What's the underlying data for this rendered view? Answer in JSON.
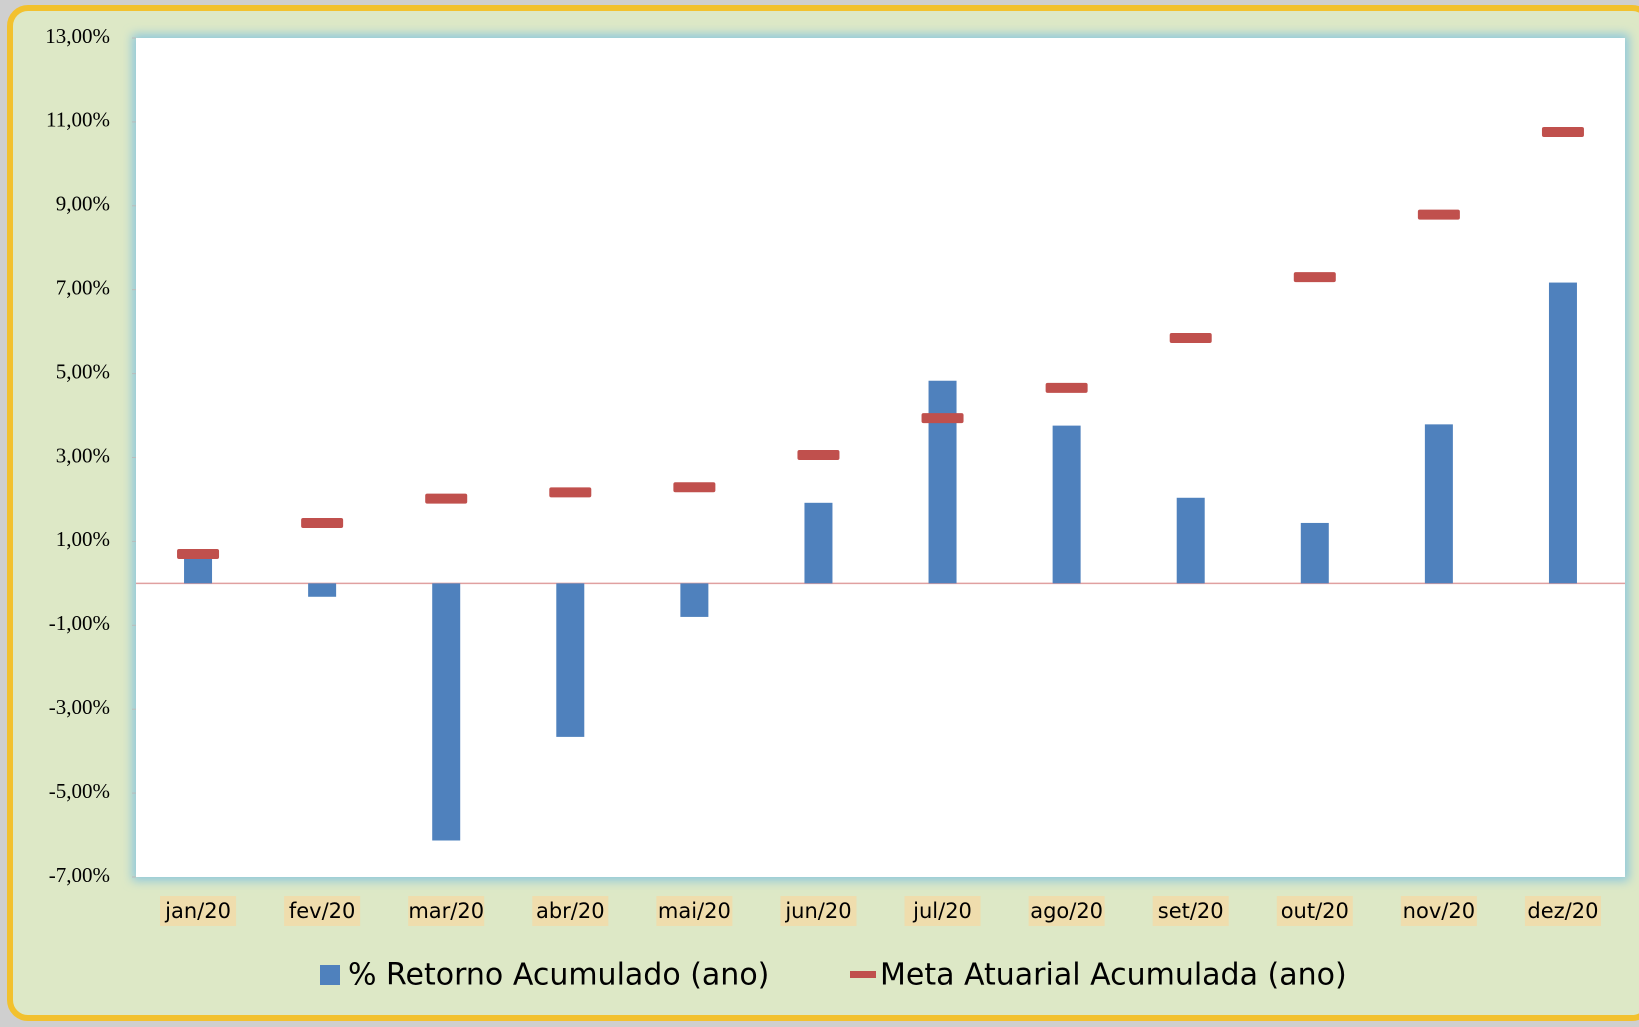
{
  "chart_data": {
    "type": "bar",
    "categories": [
      "jan/20",
      "fev/20",
      "mar/20",
      "abr/20",
      "mai/20",
      "jun/20",
      "jul/20",
      "ago/20",
      "set/20",
      "out/20",
      "nov/20",
      "dez/20"
    ],
    "series": [
      {
        "name": "% Retorno Acumulado (ano)",
        "type": "bar",
        "color": "#4f81bd",
        "values": [
          0.6,
          -0.32,
          -6.13,
          -3.66,
          -0.8,
          1.92,
          4.83,
          3.76,
          2.04,
          1.44,
          3.79,
          7.17
        ]
      },
      {
        "name": "Meta Atuarial Acumulada (ano)",
        "type": "marker",
        "color": "#c0504d",
        "values": [
          0.7,
          1.44,
          2.02,
          2.17,
          2.29,
          3.06,
          3.94,
          4.66,
          5.85,
          7.3,
          8.79,
          10.76
        ]
      }
    ],
    "ylim": [
      -7,
      13
    ],
    "yticks": [
      {
        "value": -7,
        "label": "-7,00%"
      },
      {
        "value": -5,
        "label": "-5,00%"
      },
      {
        "value": -3,
        "label": "-3,00%"
      },
      {
        "value": -1,
        "label": "-1,00%"
      },
      {
        "value": 1,
        "label": "1,00%"
      },
      {
        "value": 3,
        "label": "3,00%"
      },
      {
        "value": 5,
        "label": "5,00%"
      },
      {
        "value": 7,
        "label": "7,00%"
      },
      {
        "value": 9,
        "label": "9,00%"
      },
      {
        "value": 11,
        "label": "11,00%"
      },
      {
        "value": 13,
        "label": "13,00%"
      }
    ],
    "legend": "bottom"
  }
}
